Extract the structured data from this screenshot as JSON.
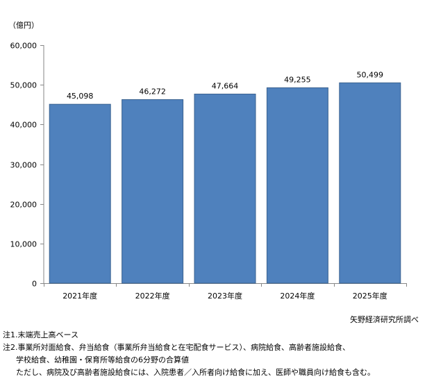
{
  "chart_data": {
    "type": "bar",
    "title": "",
    "xlabel": "",
    "ylabel": "",
    "unit": "（億円）",
    "categories": [
      "2021年度",
      "2022年度",
      "2023年度",
      "2024年度",
      "2025年度"
    ],
    "values": [
      45098,
      46272,
      47664,
      49255,
      50499
    ],
    "value_labels": [
      "45,098",
      "46,272",
      "47,664",
      "49,255",
      "50,499"
    ],
    "ylim": [
      0,
      60000
    ],
    "yticks": [
      0,
      10000,
      20000,
      30000,
      40000,
      50000,
      60000
    ],
    "ytick_labels": [
      "0",
      "10,000",
      "20,000",
      "30,000",
      "40,000",
      "50,000",
      "60,000"
    ],
    "grid": false,
    "bar_color": "#4F81BD",
    "bar_edge_color": "#3A6290"
  },
  "source": "矢野経済研究所調べ",
  "notes": [
    "注1.末端売上高ベース",
    "注2.事業所対面給食、弁当給食（事業所弁当給食と在宅配食サービス）、病院給食、高齢者施設給食、",
    "学校給食、幼稚園・保育所等給食の6分野の合算値",
    "ただし、病院及び高齢者施設給食には、入院患者／入所者向け給食に加え、医師や職員向け給食も含む。"
  ]
}
